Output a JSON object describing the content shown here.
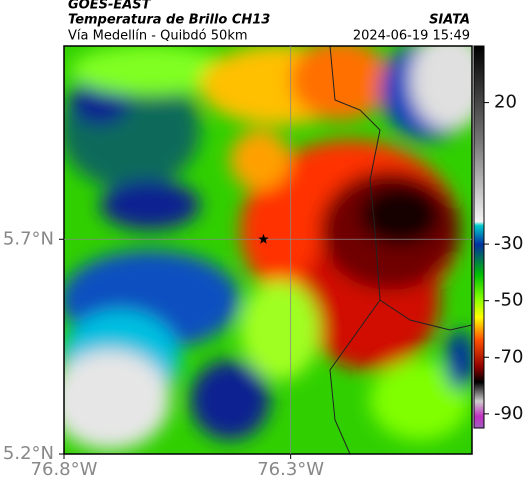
{
  "header": {
    "title": "GOES-EAST",
    "subtitle": "Temperatura de Brillo CH13",
    "source": "SIATA",
    "region": "Vía Medellín - Quibdó 50km",
    "datetime": "2024-06-19 15:49"
  },
  "map": {
    "xlim": [
      -76.8,
      -75.9
    ],
    "ylim": [
      5.2,
      6.15
    ],
    "xticks": [
      {
        "value": -76.8,
        "label": "76.8°W"
      },
      {
        "value": -76.3,
        "label": "76.3°W"
      }
    ],
    "yticks": [
      {
        "value": 5.2,
        "label": "5.2°N"
      },
      {
        "value": 5.7,
        "label": "5.7°N"
      }
    ],
    "grid": true,
    "marker": {
      "lon": -76.36,
      "lat": 5.7
    }
  },
  "colorbar": {
    "lim": [
      -95,
      40
    ],
    "ticks": [
      20,
      -30,
      -50,
      -70,
      -90
    ]
  }
}
